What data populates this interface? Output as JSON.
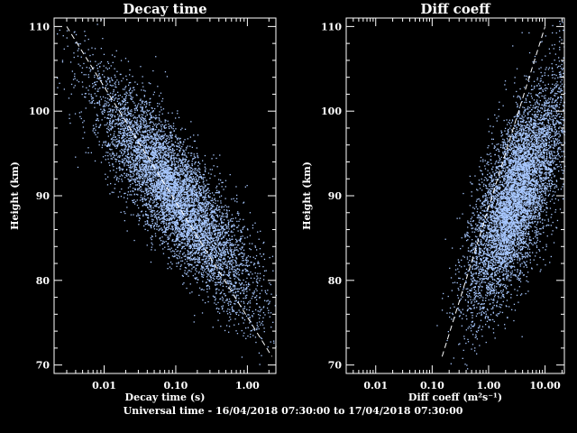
{
  "footer": "Universal time - 16/04/2018 07:30:00 to 17/04/2018 07:30:00",
  "colors": {
    "background": "#000000",
    "axes": "#ffffff",
    "points": "#a8c8ff",
    "fit_line": "#ffffff"
  },
  "chart_data": [
    {
      "type": "scatter",
      "title": "Decay time",
      "xlabel": "Decay time (s)",
      "ylabel": "Height (km)",
      "xscale": "log",
      "xlim": [
        0.002,
        2.5
      ],
      "ylim": [
        69,
        111
      ],
      "xticks": [
        0.01,
        0.1,
        1.0
      ],
      "xtick_labels": [
        "0.01",
        "0.10",
        "1.00"
      ],
      "yticks": [
        70,
        80,
        90,
        100,
        110
      ],
      "ytick_labels": [
        "70",
        "80",
        "90",
        "100",
        "110"
      ],
      "grid": false,
      "legend": "none",
      "point_clouds": [
        {
          "height_center": 90,
          "height_sd": 6.5,
          "value_at_center": 0.1,
          "decades_per_km": -0.07,
          "log_spread": 0.3,
          "count": 7000
        }
      ],
      "fit_line": {
        "style": "dashed",
        "x": [
          0.003,
          2.2
        ],
        "y": [
          110,
          71
        ]
      }
    },
    {
      "type": "scatter",
      "title": "Diff coeff",
      "xlabel": "Diff coeff  (m²s⁻¹)",
      "ylabel": "Height (km)",
      "xscale": "log",
      "xlim": [
        0.003,
        22
      ],
      "ylim": [
        69,
        111
      ],
      "xticks": [
        0.01,
        0.1,
        1.0,
        10.0
      ],
      "xtick_labels": [
        "0.01",
        "0.10",
        "1.00",
        "10.00"
      ],
      "yticks": [
        70,
        80,
        90,
        100,
        110
      ],
      "ytick_labels": [
        "70",
        "80",
        "90",
        "100",
        "110"
      ],
      "grid": false,
      "legend": "none",
      "point_clouds": [
        {
          "height_center": 90,
          "height_sd": 6.5,
          "value_at_center": 3.0,
          "decades_per_km": 0.045,
          "log_spread": 0.3,
          "count": 7000
        }
      ],
      "fit_line": {
        "style": "dashed",
        "x": [
          0.15,
          10.0
        ],
        "y": [
          71,
          110
        ]
      }
    }
  ]
}
